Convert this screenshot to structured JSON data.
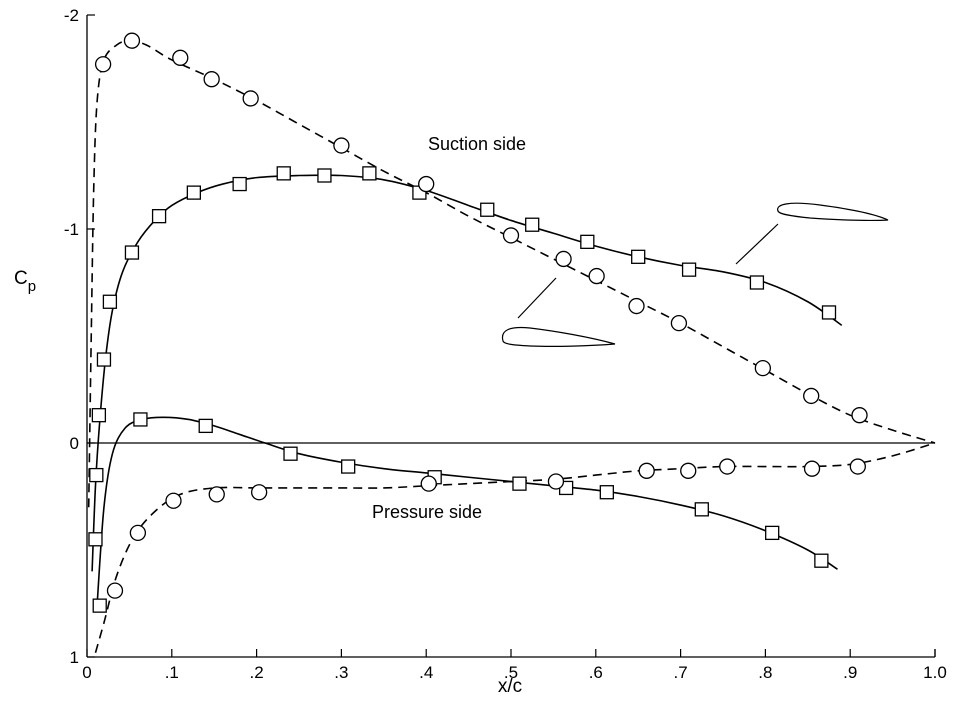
{
  "chart_data": {
    "type": "line",
    "xlabel": "x/c",
    "ylabel": {
      "main": "C",
      "sub": "p"
    },
    "xlim": [
      0,
      1.0
    ],
    "ylim": [
      1,
      -2
    ],
    "y_axis_inverted": true,
    "grid": false,
    "x_ticks": [
      {
        "value": 0,
        "label": "0"
      },
      {
        "value": 0.1,
        "label": ".1"
      },
      {
        "value": 0.2,
        "label": ".2"
      },
      {
        "value": 0.3,
        "label": ".3"
      },
      {
        "value": 0.4,
        "label": ".4"
      },
      {
        "value": 0.5,
        "label": ".5"
      },
      {
        "value": 0.6,
        "label": ".6"
      },
      {
        "value": 0.7,
        "label": ".7"
      },
      {
        "value": 0.8,
        "label": ".8"
      },
      {
        "value": 0.9,
        "label": ".9"
      },
      {
        "value": 1.0,
        "label": "1.0"
      }
    ],
    "y_ticks": [
      {
        "value": -2,
        "label": "-2"
      },
      {
        "value": -1,
        "label": "-1"
      },
      {
        "value": 0,
        "label": "0"
      },
      {
        "value": 1,
        "label": "1"
      }
    ],
    "annotations": [
      {
        "text": "Suction side",
        "x": 0.5,
        "y": -1.38
      },
      {
        "text": "Pressure side",
        "x": 0.46,
        "y": 0.43
      }
    ],
    "series": [
      {
        "marker": "square",
        "line": "solid",
        "surface": "suction",
        "points": [
          [
            0.011,
            0.15
          ],
          [
            0.014,
            -0.13
          ],
          [
            0.02,
            -0.39
          ],
          [
            0.027,
            -0.66
          ],
          [
            0.053,
            -0.89
          ],
          [
            0.085,
            -1.06
          ],
          [
            0.126,
            -1.17
          ],
          [
            0.18,
            -1.21
          ],
          [
            0.232,
            -1.26
          ],
          [
            0.28,
            -1.25
          ],
          [
            0.333,
            -1.26
          ],
          [
            0.392,
            -1.17
          ],
          [
            0.472,
            -1.09
          ],
          [
            0.525,
            -1.02
          ],
          [
            0.59,
            -0.94
          ],
          [
            0.65,
            -0.87
          ],
          [
            0.71,
            -0.81
          ],
          [
            0.79,
            -0.75
          ],
          [
            0.875,
            -0.61
          ]
        ],
        "curve": [
          [
            0.006,
            0.6
          ],
          [
            0.01,
            0.2
          ],
          [
            0.015,
            -0.1
          ],
          [
            0.022,
            -0.4
          ],
          [
            0.03,
            -0.62
          ],
          [
            0.042,
            -0.8
          ],
          [
            0.06,
            -0.94
          ],
          [
            0.08,
            -1.04
          ],
          [
            0.1,
            -1.11
          ],
          [
            0.13,
            -1.17
          ],
          [
            0.16,
            -1.21
          ],
          [
            0.2,
            -1.24
          ],
          [
            0.25,
            -1.25
          ],
          [
            0.3,
            -1.25
          ],
          [
            0.35,
            -1.23
          ],
          [
            0.4,
            -1.18
          ],
          [
            0.45,
            -1.11
          ],
          [
            0.5,
            -1.04
          ],
          [
            0.55,
            -0.98
          ],
          [
            0.6,
            -0.92
          ],
          [
            0.65,
            -0.87
          ],
          [
            0.7,
            -0.83
          ],
          [
            0.75,
            -0.8
          ],
          [
            0.8,
            -0.75
          ],
          [
            0.85,
            -0.66
          ],
          [
            0.89,
            -0.55
          ]
        ]
      },
      {
        "marker": "square",
        "line": "solid",
        "surface": "pressure",
        "points": [
          [
            0.01,
            0.45
          ],
          [
            0.015,
            0.76
          ],
          [
            0.063,
            -0.11
          ],
          [
            0.14,
            -0.08
          ],
          [
            0.24,
            0.05
          ],
          [
            0.308,
            0.11
          ],
          [
            0.41,
            0.16
          ],
          [
            0.51,
            0.19
          ],
          [
            0.565,
            0.21
          ],
          [
            0.613,
            0.23
          ],
          [
            0.725,
            0.31
          ],
          [
            0.808,
            0.42
          ],
          [
            0.866,
            0.55
          ]
        ],
        "curve": [
          [
            0.012,
            0.75
          ],
          [
            0.02,
            0.3
          ],
          [
            0.03,
            0.05
          ],
          [
            0.045,
            -0.07
          ],
          [
            0.065,
            -0.11
          ],
          [
            0.09,
            -0.12
          ],
          [
            0.12,
            -0.11
          ],
          [
            0.15,
            -0.08
          ],
          [
            0.18,
            -0.04
          ],
          [
            0.21,
            0.0
          ],
          [
            0.25,
            0.05
          ],
          [
            0.3,
            0.09
          ],
          [
            0.35,
            0.12
          ],
          [
            0.4,
            0.14
          ],
          [
            0.45,
            0.16
          ],
          [
            0.5,
            0.18
          ],
          [
            0.55,
            0.2
          ],
          [
            0.6,
            0.22
          ],
          [
            0.65,
            0.25
          ],
          [
            0.7,
            0.29
          ],
          [
            0.75,
            0.34
          ],
          [
            0.8,
            0.41
          ],
          [
            0.85,
            0.5
          ],
          [
            0.885,
            0.59
          ]
        ]
      },
      {
        "marker": "circle",
        "line": "dashed",
        "surface": "suction",
        "points": [
          [
            0.019,
            -1.77
          ],
          [
            0.053,
            -1.88
          ],
          [
            0.11,
            -1.8
          ],
          [
            0.147,
            -1.7
          ],
          [
            0.193,
            -1.61
          ],
          [
            0.3,
            -1.39
          ],
          [
            0.4,
            -1.21
          ],
          [
            0.5,
            -0.97
          ],
          [
            0.562,
            -0.86
          ],
          [
            0.601,
            -0.78
          ],
          [
            0.648,
            -0.64
          ],
          [
            0.698,
            -0.56
          ],
          [
            0.797,
            -0.35
          ],
          [
            0.854,
            -0.22
          ],
          [
            0.911,
            -0.13
          ]
        ],
        "curve": [
          [
            0.002,
            0.3
          ],
          [
            0.005,
            -0.5
          ],
          [
            0.008,
            -1.2
          ],
          [
            0.012,
            -1.6
          ],
          [
            0.02,
            -1.79
          ],
          [
            0.035,
            -1.86
          ],
          [
            0.05,
            -1.88
          ],
          [
            0.07,
            -1.86
          ],
          [
            0.1,
            -1.79
          ],
          [
            0.15,
            -1.7
          ],
          [
            0.2,
            -1.6
          ],
          [
            0.25,
            -1.49
          ],
          [
            0.3,
            -1.38
          ],
          [
            0.35,
            -1.27
          ],
          [
            0.4,
            -1.17
          ],
          [
            0.45,
            -1.06
          ],
          [
            0.5,
            -0.96
          ],
          [
            0.55,
            -0.86
          ],
          [
            0.6,
            -0.76
          ],
          [
            0.65,
            -0.66
          ],
          [
            0.7,
            -0.56
          ],
          [
            0.75,
            -0.45
          ],
          [
            0.8,
            -0.34
          ],
          [
            0.85,
            -0.23
          ],
          [
            0.9,
            -0.13
          ],
          [
            0.95,
            -0.06
          ],
          [
            1.0,
            0.0
          ]
        ]
      },
      {
        "marker": "circle",
        "line": "dashed",
        "surface": "pressure",
        "points": [
          [
            0.033,
            0.69
          ],
          [
            0.06,
            0.42
          ],
          [
            0.102,
            0.27
          ],
          [
            0.153,
            0.24
          ],
          [
            0.203,
            0.23
          ],
          [
            0.403,
            0.19
          ],
          [
            0.553,
            0.18
          ],
          [
            0.66,
            0.13
          ],
          [
            0.709,
            0.13
          ],
          [
            0.755,
            0.11
          ],
          [
            0.855,
            0.12
          ],
          [
            0.909,
            0.11
          ]
        ],
        "curve": [
          [
            0.01,
            0.98
          ],
          [
            0.02,
            0.84
          ],
          [
            0.035,
            0.62
          ],
          [
            0.055,
            0.44
          ],
          [
            0.08,
            0.32
          ],
          [
            0.11,
            0.24
          ],
          [
            0.15,
            0.21
          ],
          [
            0.2,
            0.21
          ],
          [
            0.25,
            0.21
          ],
          [
            0.3,
            0.21
          ],
          [
            0.35,
            0.21
          ],
          [
            0.4,
            0.2
          ],
          [
            0.45,
            0.19
          ],
          [
            0.5,
            0.18
          ],
          [
            0.55,
            0.17
          ],
          [
            0.6,
            0.15
          ],
          [
            0.65,
            0.13
          ],
          [
            0.7,
            0.12
          ],
          [
            0.75,
            0.11
          ],
          [
            0.8,
            0.11
          ],
          [
            0.85,
            0.11
          ],
          [
            0.9,
            0.1
          ],
          [
            0.95,
            0.06
          ],
          [
            1.0,
            0.0
          ]
        ]
      }
    ]
  }
}
